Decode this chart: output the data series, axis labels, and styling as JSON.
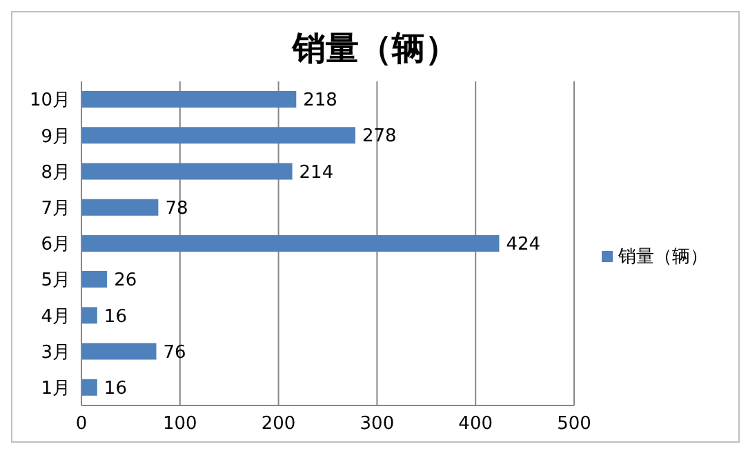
{
  "chart_data": {
    "type": "bar",
    "orientation": "horizontal",
    "title": "销量（辆）",
    "categories": [
      "10月",
      "9月",
      "8月",
      "7月",
      "6月",
      "5月",
      "4月",
      "3月",
      "1月"
    ],
    "series": [
      {
        "name": "销量（辆）",
        "color": "#4f81bd",
        "values": [
          218,
          278,
          214,
          78,
          424,
          26,
          16,
          76,
          16
        ]
      }
    ],
    "xlim": [
      0,
      500
    ],
    "xticks": [
      0,
      100,
      200,
      300,
      400,
      500
    ],
    "grid": "x",
    "legend": "right",
    "data_labels": true
  }
}
